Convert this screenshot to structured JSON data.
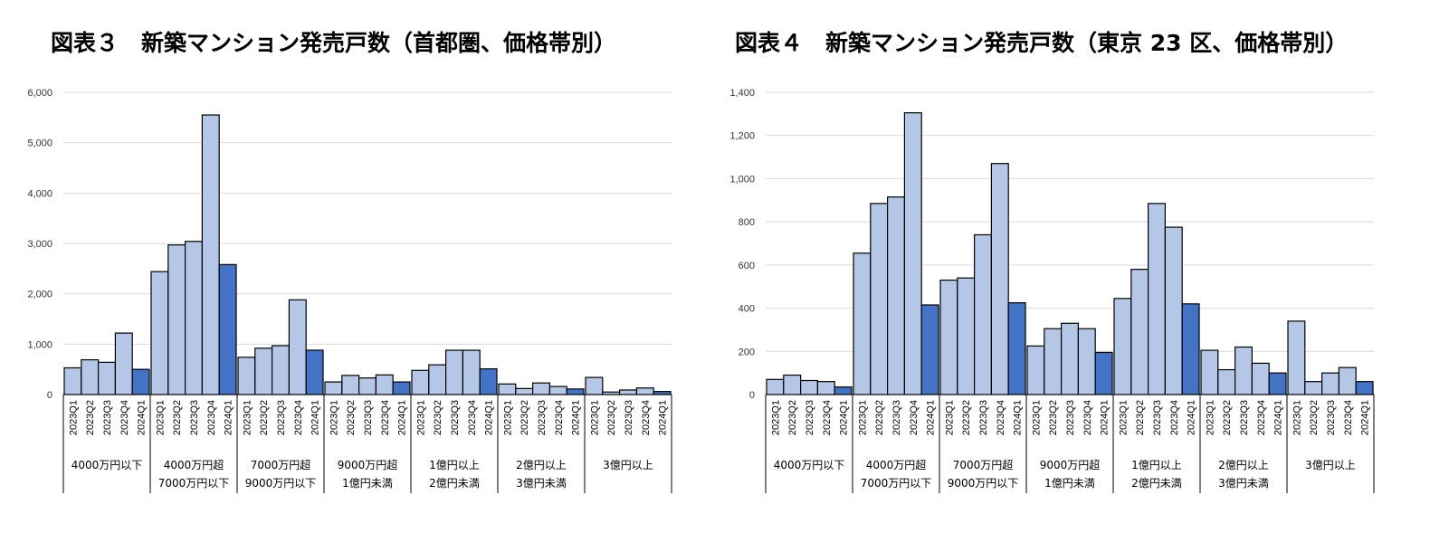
{
  "charts": {
    "left_title": "図表３　新築マンション発売戸数（首都圏、価格帯別）",
    "right_title": "図表４　新築マンション発売戸数（東京 23 区、価格帯別）"
  },
  "colors": {
    "past": "#b4c7e7",
    "latest": "#4472c4",
    "border": "#000000",
    "grid": "#d9d9d9"
  },
  "chart_data": [
    {
      "type": "bar",
      "title": "図表３　新築マンション発売戸数（首都圏、価格帯別）",
      "ylim": [
        0,
        6000
      ],
      "yticks": [
        "0",
        "1,000",
        "2,000",
        "3,000",
        "4,000",
        "5,000",
        "6,000"
      ],
      "quarters": [
        "2023Q1",
        "2023Q2",
        "2023Q3",
        "2023Q4",
        "2024Q1"
      ],
      "grid": true,
      "groups": [
        {
          "label": [
            "4000万円以下"
          ],
          "values": [
            530,
            690,
            640,
            1220,
            500
          ]
        },
        {
          "label": [
            "4000万円超",
            "7000万円以下"
          ],
          "values": [
            2440,
            2970,
            3040,
            5550,
            2580
          ]
        },
        {
          "label": [
            "7000万円超",
            "9000万円以下"
          ],
          "values": [
            740,
            920,
            970,
            1880,
            880
          ]
        },
        {
          "label": [
            "9000万円超",
            "1億円未満"
          ],
          "values": [
            250,
            380,
            330,
            390,
            250
          ]
        },
        {
          "label": [
            "1億円以上",
            "2億円未満"
          ],
          "values": [
            480,
            590,
            880,
            880,
            510
          ]
        },
        {
          "label": [
            "2億円以上",
            "3億円未満"
          ],
          "values": [
            210,
            120,
            230,
            160,
            110
          ]
        },
        {
          "label": [
            "3億円以上"
          ],
          "values": [
            340,
            50,
            90,
            130,
            60
          ]
        }
      ]
    },
    {
      "type": "bar",
      "title": "図表４　新築マンション発売戸数（東京 23 区、価格帯別）",
      "ylim": [
        0,
        1400
      ],
      "yticks": [
        "0",
        "200",
        "400",
        "600",
        "800",
        "1,000",
        "1,200",
        "1,400"
      ],
      "quarters": [
        "2023Q1",
        "2023Q2",
        "2023Q3",
        "2023Q4",
        "2024Q1"
      ],
      "grid": true,
      "groups": [
        {
          "label": [
            "4000万円以下"
          ],
          "values": [
            70,
            90,
            65,
            60,
            35
          ]
        },
        {
          "label": [
            "4000万円超",
            "7000万円以下"
          ],
          "values": [
            655,
            885,
            915,
            1305,
            415
          ]
        },
        {
          "label": [
            "7000万円超",
            "9000万円以下"
          ],
          "values": [
            530,
            540,
            740,
            1070,
            425
          ]
        },
        {
          "label": [
            "9000万円超",
            "1億円未満"
          ],
          "values": [
            225,
            305,
            330,
            305,
            195
          ]
        },
        {
          "label": [
            "1億円以上",
            "2億円未満"
          ],
          "values": [
            445,
            580,
            885,
            775,
            420
          ]
        },
        {
          "label": [
            "2億円以上",
            "3億円未満"
          ],
          "values": [
            205,
            115,
            220,
            145,
            100
          ]
        },
        {
          "label": [
            "3億円以上"
          ],
          "values": [
            340,
            60,
            100,
            125,
            60
          ]
        }
      ]
    }
  ]
}
